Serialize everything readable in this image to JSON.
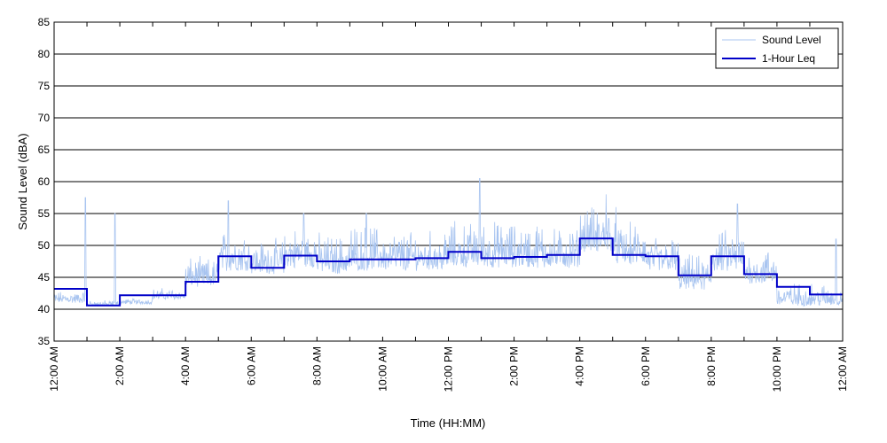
{
  "chart_data": {
    "type": "line",
    "xlabel": "Time (HH:MM)",
    "ylabel": "Sound Level (dBA)",
    "xlim": [
      0,
      24
    ],
    "ylim": [
      35,
      85
    ],
    "y_ticks": [
      35,
      40,
      45,
      50,
      55,
      60,
      65,
      70,
      75,
      80,
      85
    ],
    "x_tick_hours": [
      0,
      2,
      4,
      6,
      8,
      10,
      12,
      14,
      16,
      18,
      20,
      22,
      24
    ],
    "x_tick_labels": [
      "12:00 AM",
      "2:00 AM",
      "4:00 AM",
      "6:00 AM",
      "8:00 AM",
      "10:00 AM",
      "12:00 PM",
      "2:00 PM",
      "4:00 PM",
      "6:00 PM",
      "8:00 PM",
      "10:00 PM",
      "12:00 AM"
    ],
    "x_grid_hours": [
      1,
      2,
      3,
      4,
      5,
      6,
      7,
      8,
      9,
      10,
      11,
      12,
      13,
      14,
      15,
      16,
      17,
      18,
      19,
      20,
      21,
      22,
      23
    ],
    "grid": "horizontal",
    "legend_position": "top-right",
    "series": [
      {
        "name": "Sound Level",
        "color": "#a8c4f0",
        "hourly_baseline": [
          41.0,
          40.5,
          40.8,
          41.5,
          43.5,
          46.0,
          45.5,
          46.5,
          45.5,
          46.0,
          46.0,
          46.0,
          46.5,
          46.5,
          46.5,
          46.5,
          49.0,
          47.0,
          46.0,
          43.0,
          46.0,
          44.0,
          40.5,
          40.5
        ],
        "hourly_range": [
          2.0,
          1.0,
          1.0,
          2.0,
          5.0,
          7.0,
          6.0,
          7.0,
          7.0,
          8.0,
          7.0,
          7.0,
          8.0,
          8.0,
          8.0,
          7.0,
          8.0,
          7.0,
          6.0,
          6.0,
          7.0,
          6.0,
          4.0,
          4.0
        ],
        "peaks": [
          {
            "x": 0.95,
            "y": 57.5
          },
          {
            "x": 1.85,
            "y": 55.0
          },
          {
            "x": 5.3,
            "y": 57.0
          },
          {
            "x": 7.6,
            "y": 55.0
          },
          {
            "x": 9.5,
            "y": 55.0
          },
          {
            "x": 12.95,
            "y": 60.5
          },
          {
            "x": 16.8,
            "y": 58.0
          },
          {
            "x": 17.1,
            "y": 56.0
          },
          {
            "x": 20.8,
            "y": 56.5
          },
          {
            "x": 23.8,
            "y": 51.0
          }
        ]
      },
      {
        "name": "1-Hour Leq",
        "color": "#0000c8",
        "x": [
          0,
          1,
          2,
          3,
          4,
          5,
          6,
          7,
          8,
          9,
          10,
          11,
          12,
          13,
          14,
          15,
          16,
          17,
          18,
          19,
          20,
          21,
          22,
          23
        ],
        "values": [
          43.2,
          40.6,
          42.2,
          42.2,
          44.3,
          48.3,
          46.5,
          48.4,
          47.5,
          47.8,
          47.8,
          48.0,
          49.0,
          48.0,
          48.2,
          48.5,
          51.1,
          48.5,
          48.3,
          45.3,
          48.3,
          45.5,
          43.5,
          42.3
        ]
      }
    ]
  }
}
